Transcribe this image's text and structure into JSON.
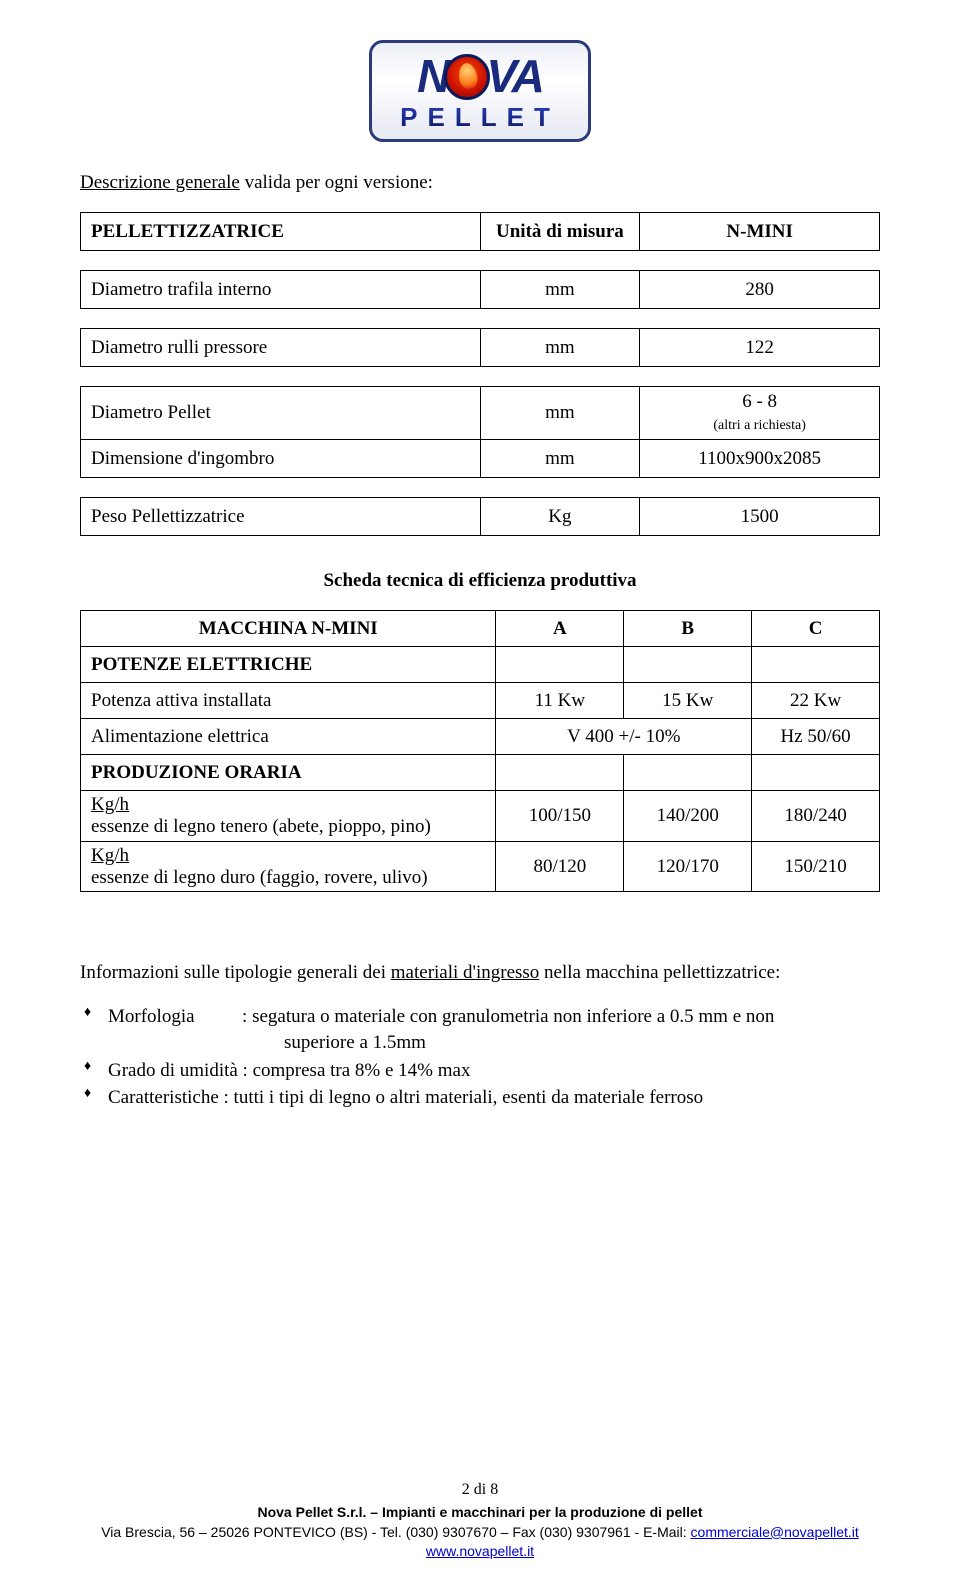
{
  "logo": {
    "main_left": "N",
    "main_right": "VA",
    "sub": "PELLET"
  },
  "section_title_prefix": "Descrizione generale",
  "section_title_rest": " valida per ogni versione:",
  "table1": {
    "headers": {
      "c1": "PELLETTIZZATRICE",
      "c2": "Unità di misura",
      "c3": "N-MINI"
    },
    "rows": [
      {
        "c1": "Diametro trafila interno",
        "c2": "mm",
        "c3": "280"
      },
      {
        "c1": "Diametro rulli pressore",
        "c2": "mm",
        "c3": "122"
      },
      {
        "c1": "Diametro Pellet",
        "c2": "mm",
        "c3": "6 - 8",
        "c3_sub": "(altri a richiesta)"
      },
      {
        "c1": "Dimensione d'ingombro",
        "c2": "mm",
        "c3": "1100x900x2085"
      },
      {
        "c1": "Peso Pellettizzatrice",
        "c2": "Kg",
        "c3": "1500"
      }
    ]
  },
  "sub_heading": "Scheda tecnica di efficienza produttiva",
  "table2": {
    "headers": {
      "c1": "MACCHINA N-MINI",
      "c2": "A",
      "c3": "B",
      "c4": "C"
    },
    "cat1": "POTENZE ELETTRICHE",
    "r1": {
      "c1": "Potenza attiva installata",
      "c2": "11 Kw",
      "c3": "15 Kw",
      "c4": "22 Kw"
    },
    "r2": {
      "c1": "Alimentazione elettrica",
      "c23": "V 400 +/- 10%",
      "c4": "Hz 50/60"
    },
    "cat2": "PRODUZIONE ORARIA",
    "r3": {
      "l1": "Kg/h",
      "l2": "essenze di legno tenero (abete, pioppo, pino)",
      "c2": "100/150",
      "c3": "140/200",
      "c4": "180/240"
    },
    "r4": {
      "l1": "Kg/h",
      "l2": "essenze di legno duro (faggio, rovere, ulivo)",
      "c2": "80/120",
      "c3": "120/170",
      "c4": "150/210"
    }
  },
  "info_prefix": "Informazioni sulle tipologie generali dei ",
  "info_ul": "materiali d'ingresso",
  "info_suffix": " nella macchina pellettizzatrice:",
  "bullets": {
    "b1a": "Morfologia",
    "b1b": ": segatura o materiale con granulometria non inferiore a 0.5 mm e non",
    "b1c": "superiore a 1.5mm",
    "b2": "Grado di umidità  : compresa tra 8% e 14% max",
    "b3": "Caratteristiche   : tutti i tipi di legno o altri materiali, esenti da materiale ferroso"
  },
  "footer": {
    "page": "2 di 8",
    "company": "Nova Pellet S.r.l. – Impianti e macchinari per la produzione di pellet",
    "addr_pre": "Via Brescia, 56 – 25026 PONTEVICO (BS) - Tel. (030) 9307670 – Fax (030) 9307961 - E-Mail: ",
    "email": "commerciale@novapellet.it",
    "web": "www.novapellet.it"
  }
}
